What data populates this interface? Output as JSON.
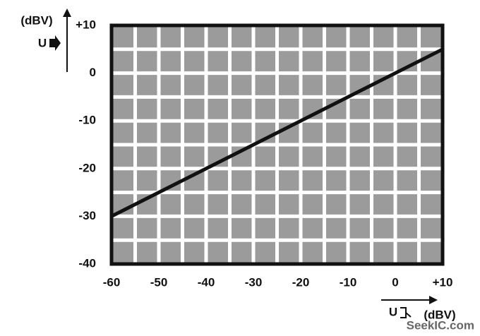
{
  "chart_data": {
    "type": "line",
    "x": [
      -60,
      10
    ],
    "values": [
      -30,
      5
    ],
    "color": "#111111",
    "xlim": [
      -60,
      10
    ],
    "ylim": [
      -40,
      10
    ],
    "xticks": [
      -60,
      -50,
      -40,
      -30,
      -20,
      -10,
      0,
      {
        "value": 10,
        "label": "+10"
      }
    ],
    "yticks": [
      -40,
      -30,
      -20,
      -10,
      0,
      {
        "value": 10,
        "label": "+10"
      }
    ],
    "xminorticks": [
      -55,
      -45,
      -35,
      -25,
      -15,
      -5,
      5
    ],
    "yminorticks": [
      -35,
      -25,
      -15,
      -5,
      5
    ],
    "grid": true,
    "ylabel": "(dBV)",
    "ylabel_symbol": "U",
    "xlabel_symbol": "U",
    "xlabel": "(dBV)",
    "watermark": "SeekIC.com"
  }
}
